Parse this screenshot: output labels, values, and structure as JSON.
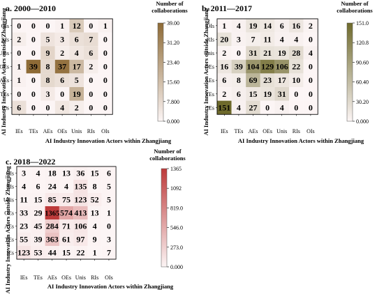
{
  "chart_data": [
    {
      "type": "heatmap",
      "title": "a. 2000—2010",
      "xlabel": "AI Industry Innovation Actors within Zhangjiang",
      "ylabel": "AI Industry Innovation Actors outside Zhangjiang",
      "x_categories": [
        "IEs",
        "TEs",
        "AEs",
        "OEs",
        "Unis",
        "RIs",
        "OIs"
      ],
      "y_categories": [
        "OIs",
        "RIs",
        "Unis",
        "OEs",
        "AEs",
        "TEs",
        "IEs"
      ],
      "values": [
        [
          0,
          0,
          0,
          1,
          12,
          0,
          1
        ],
        [
          2,
          0,
          5,
          3,
          6,
          7,
          0
        ],
        [
          0,
          0,
          9,
          2,
          4,
          6,
          0
        ],
        [
          1,
          39,
          8,
          37,
          17,
          2,
          0
        ],
        [
          1,
          0,
          8,
          6,
          5,
          0,
          0
        ],
        [
          0,
          0,
          3,
          0,
          19,
          0,
          0
        ],
        [
          6,
          0,
          0,
          4,
          2,
          0,
          0
        ]
      ],
      "colorbar": {
        "title": "Number of collaborations",
        "ticks": [
          "39.00",
          "31.20",
          "23.40",
          "15.60",
          "7.800",
          "0.000"
        ],
        "min": 0,
        "max": 39,
        "color_low": "#fcf5f5",
        "color_high": "#8e6b36"
      }
    },
    {
      "type": "heatmap",
      "title": "b. 2011—2017",
      "xlabel": "AI Industry Innovation Actors within Zhangjiang",
      "ylabel": "AI Industry Innovation Actors outside Zhangjiang",
      "x_categories": [
        "IEs",
        "TEs",
        "AEs",
        "OEs",
        "Unis",
        "RIs",
        "OIs"
      ],
      "y_categories": [
        "OIs",
        "RIs",
        "Unis",
        "OEs",
        "AEs",
        "TEs",
        "IEs"
      ],
      "values": [
        [
          1,
          4,
          19,
          14,
          6,
          16,
          2
        ],
        [
          20,
          3,
          7,
          11,
          4,
          4,
          0
        ],
        [
          2,
          0,
          31,
          21,
          19,
          28,
          4
        ],
        [
          16,
          39,
          104,
          129,
          106,
          22,
          0
        ],
        [
          6,
          8,
          69,
          23,
          17,
          10,
          0
        ],
        [
          2,
          6,
          15,
          19,
          31,
          0,
          0
        ],
        [
          151,
          4,
          27,
          0,
          4,
          0,
          0
        ]
      ],
      "colorbar": {
        "title": "Number of collaborations",
        "ticks": [
          "151.0",
          "120.8",
          "90.60",
          "60.40",
          "30.20",
          "0.000"
        ],
        "min": 0,
        "max": 151,
        "color_low": "#fcf5f5",
        "color_high": "#6e6a2c"
      }
    },
    {
      "type": "heatmap",
      "title": "c. 2018—2022",
      "xlabel": "AI Industry Innovation Actors within Zhangjiang",
      "ylabel": "AI Industry Innovation Actors outside Zhangjiang",
      "x_categories": [
        "IEs",
        "TEs",
        "AEs",
        "OEs",
        "Unis",
        "RIs",
        "OIs"
      ],
      "y_categories": [
        "OIs",
        "RIs",
        "Unis",
        "OEs",
        "AEs",
        "TEs",
        "IEs"
      ],
      "values": [
        [
          3,
          4,
          18,
          13,
          36,
          15,
          6
        ],
        [
          4,
          6,
          24,
          4,
          135,
          8,
          5
        ],
        [
          11,
          15,
          85,
          75,
          123,
          52,
          5
        ],
        [
          33,
          29,
          1365,
          574,
          413,
          13,
          1
        ],
        [
          23,
          45,
          284,
          71,
          106,
          4,
          0
        ],
        [
          55,
          39,
          363,
          61,
          97,
          9,
          3
        ],
        [
          123,
          53,
          44,
          15,
          22,
          1,
          7
        ]
      ],
      "colorbar": {
        "title": "Number of collaborations",
        "ticks": [
          "1365",
          "1092",
          "819.0",
          "546.0",
          "273.0",
          "0.000"
        ],
        "min": 0,
        "max": 1365,
        "color_low": "#fcf5f5",
        "color_high": "#bd3a3a"
      }
    }
  ]
}
